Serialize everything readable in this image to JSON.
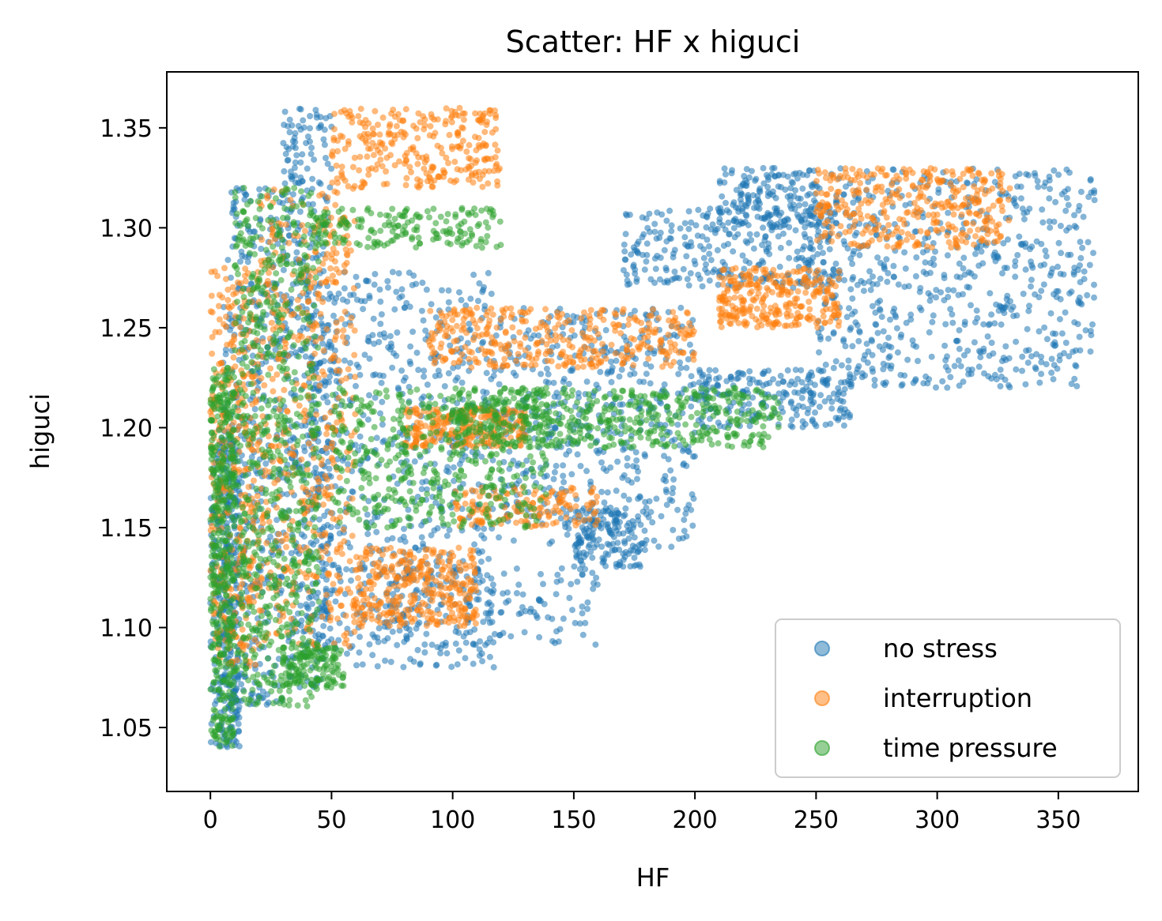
{
  "chart_data": {
    "type": "scatter",
    "title": "Scatter: HF x higuci",
    "xlabel": "HF",
    "ylabel": "higuci",
    "xlim": [
      -18,
      383
    ],
    "ylim": [
      1.018,
      1.378
    ],
    "xticks": [
      0,
      50,
      100,
      150,
      200,
      250,
      300,
      350
    ],
    "yticks": [
      1.05,
      1.1,
      1.15,
      1.2,
      1.25,
      1.3,
      1.35
    ],
    "grid": false,
    "legend_position": "lower-right",
    "series": [
      {
        "name": "no stress",
        "color": "#1f77b4",
        "clusters": [
          {
            "x": [
              0,
              12
            ],
            "y": [
              1.04,
              1.2
            ],
            "n": 320
          },
          {
            "x": [
              5,
              30
            ],
            "y": [
              1.06,
              1.32
            ],
            "n": 420
          },
          {
            "x": [
              30,
              50
            ],
            "y": [
              1.07,
              1.36
            ],
            "n": 420
          },
          {
            "x": [
              40,
              120
            ],
            "y": [
              1.08,
              1.28
            ],
            "n": 700
          },
          {
            "x": [
              120,
              200
            ],
            "y": [
              1.14,
              1.26
            ],
            "n": 500
          },
          {
            "x": [
              150,
              180
            ],
            "y": [
              1.13,
              1.16
            ],
            "n": 150
          },
          {
            "x": [
              200,
              265
            ],
            "y": [
              1.2,
              1.23
            ],
            "n": 220
          },
          {
            "x": [
              170,
              260
            ],
            "y": [
              1.27,
              1.31
            ],
            "n": 300
          },
          {
            "x": [
              210,
              250
            ],
            "y": [
              1.3,
              1.33
            ],
            "n": 160
          },
          {
            "x": [
              250,
              365
            ],
            "y": [
              1.22,
              1.33
            ],
            "n": 650
          },
          {
            "x": [
              60,
              160
            ],
            "y": [
              1.09,
              1.13
            ],
            "n": 160
          }
        ]
      },
      {
        "name": "interruption",
        "color": "#ff7f0e",
        "clusters": [
          {
            "x": [
              0,
              20
            ],
            "y": [
              1.08,
              1.28
            ],
            "n": 350
          },
          {
            "x": [
              20,
              60
            ],
            "y": [
              1.09,
              1.32
            ],
            "n": 500
          },
          {
            "x": [
              50,
              120
            ],
            "y": [
              1.32,
              1.36
            ],
            "n": 280
          },
          {
            "x": [
              60,
              110
            ],
            "y": [
              1.1,
              1.14
            ],
            "n": 320
          },
          {
            "x": [
              80,
              130
            ],
            "y": [
              1.19,
              1.21
            ],
            "n": 250
          },
          {
            "x": [
              90,
              200
            ],
            "y": [
              1.23,
              1.26
            ],
            "n": 350
          },
          {
            "x": [
              100,
              160
            ],
            "y": [
              1.15,
              1.17
            ],
            "n": 150
          },
          {
            "x": [
              210,
              260
            ],
            "y": [
              1.25,
              1.28
            ],
            "n": 280
          },
          {
            "x": [
              250,
              330
            ],
            "y": [
              1.29,
              1.33
            ],
            "n": 350
          }
        ]
      },
      {
        "name": "time pressure",
        "color": "#2ca02c",
        "clusters": [
          {
            "x": [
              0,
              10
            ],
            "y": [
              1.04,
              1.23
            ],
            "n": 450
          },
          {
            "x": [
              10,
              45
            ],
            "y": [
              1.06,
              1.32
            ],
            "n": 700
          },
          {
            "x": [
              40,
              120
            ],
            "y": [
              1.29,
              1.31
            ],
            "n": 180
          },
          {
            "x": [
              50,
              140
            ],
            "y": [
              1.15,
              1.22
            ],
            "n": 450
          },
          {
            "x": [
              100,
              235
            ],
            "y": [
              1.19,
              1.22
            ],
            "n": 500
          },
          {
            "x": [
              30,
              55
            ],
            "y": [
              1.07,
              1.09
            ],
            "n": 120
          }
        ]
      }
    ]
  }
}
